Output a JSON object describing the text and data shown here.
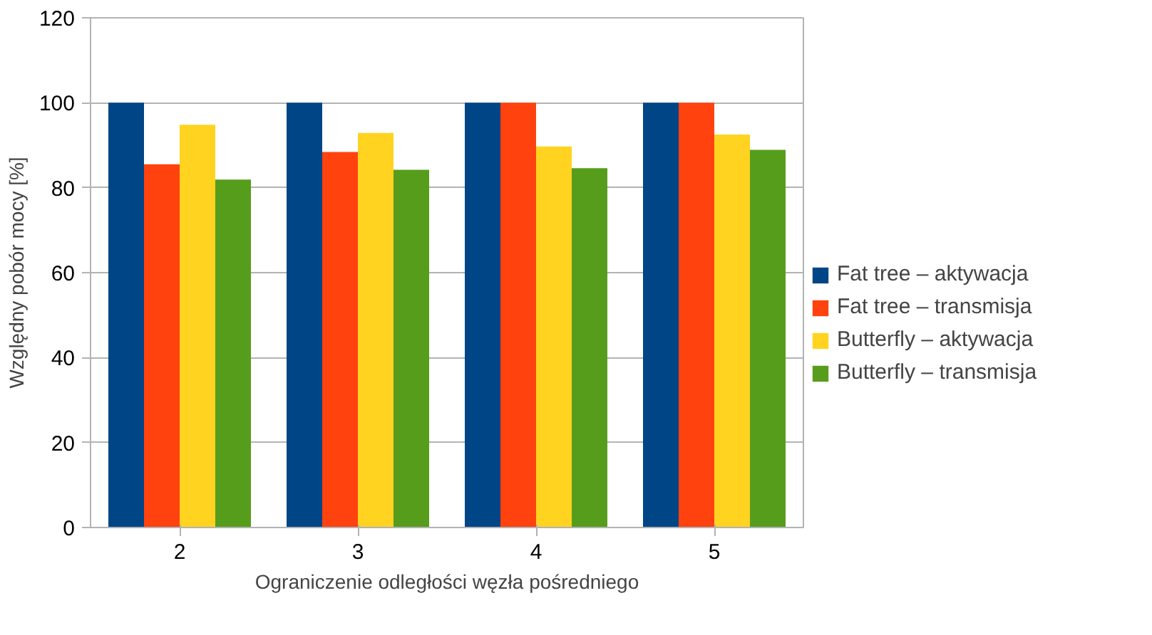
{
  "chart_data": {
    "type": "bar",
    "xlabel": "Ograniczenie odległości węzła pośredniego",
    "ylabel": "Względny pobór mocy [%]",
    "categories": [
      "2",
      "3",
      "4",
      "5"
    ],
    "series": [
      {
        "name": "Fat tree – aktywacja",
        "color": "#004586",
        "values": [
          100,
          100,
          100,
          100
        ]
      },
      {
        "name": "Fat tree – transmisja",
        "color": "#ff420e",
        "values": [
          85.5,
          88.4,
          100,
          100
        ]
      },
      {
        "name": "Butterfly – aktywacja",
        "color": "#ffd320",
        "values": [
          94.8,
          92.9,
          89.7,
          92.5
        ]
      },
      {
        "name": "Butterfly – transmisja",
        "color": "#579d1c",
        "values": [
          81.9,
          84.2,
          84.6,
          88.9
        ]
      }
    ],
    "ylim": [
      0,
      120
    ],
    "yticks": [
      0,
      20,
      40,
      60,
      80,
      100,
      120
    ],
    "grid": "y",
    "legend": "right"
  }
}
